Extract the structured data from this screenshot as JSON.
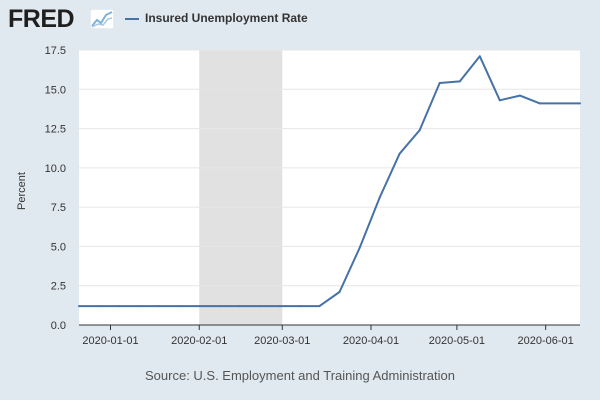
{
  "logo": {
    "text": "FRED",
    "icon": "trend-graph-icon"
  },
  "legend": {
    "label": "Insured Unemployment Rate",
    "color": "#4572a7"
  },
  "source": "Source: U.S. Employment and Training Administration",
  "colors": {
    "background": "#e1e9f0",
    "plot_background": "#ffffff",
    "recession": "#e1e1e1",
    "line": "#4572a7",
    "grid": "#e6e6e6"
  },
  "chart_data": {
    "type": "line",
    "title": "",
    "xlabel": "",
    "ylabel": "Percent",
    "ylim": [
      0,
      17.5
    ],
    "xlim": [
      "2019-12-21",
      "2020-06-13"
    ],
    "grid": true,
    "legend_position": "top-left",
    "yticks": [
      "0.0",
      "2.5",
      "5.0",
      "7.5",
      "10.0",
      "12.5",
      "15.0",
      "17.5"
    ],
    "xticks": [
      "2020-01-01",
      "2020-02-01",
      "2020-03-01",
      "2020-04-01",
      "2020-05-01",
      "2020-06-01"
    ],
    "recession": {
      "start": "2020-02-01",
      "end": "2020-03-01"
    },
    "series": [
      {
        "name": "Insured Unemployment Rate",
        "x": [
          "2019-12-21",
          "2019-12-28",
          "2020-01-04",
          "2020-01-11",
          "2020-01-18",
          "2020-01-25",
          "2020-02-01",
          "2020-02-08",
          "2020-02-15",
          "2020-02-22",
          "2020-02-29",
          "2020-03-07",
          "2020-03-14",
          "2020-03-21",
          "2020-03-28",
          "2020-04-04",
          "2020-04-11",
          "2020-04-18",
          "2020-04-25",
          "2020-05-02",
          "2020-05-09",
          "2020-05-16",
          "2020-05-23",
          "2020-05-30",
          "2020-06-06",
          "2020-06-13"
        ],
        "values": [
          1.2,
          1.2,
          1.2,
          1.2,
          1.2,
          1.2,
          1.2,
          1.2,
          1.2,
          1.2,
          1.2,
          1.2,
          1.2,
          2.1,
          4.9,
          8.1,
          10.9,
          12.4,
          15.4,
          15.5,
          17.1,
          14.3,
          14.6,
          14.1,
          14.1,
          14.1
        ]
      }
    ]
  }
}
